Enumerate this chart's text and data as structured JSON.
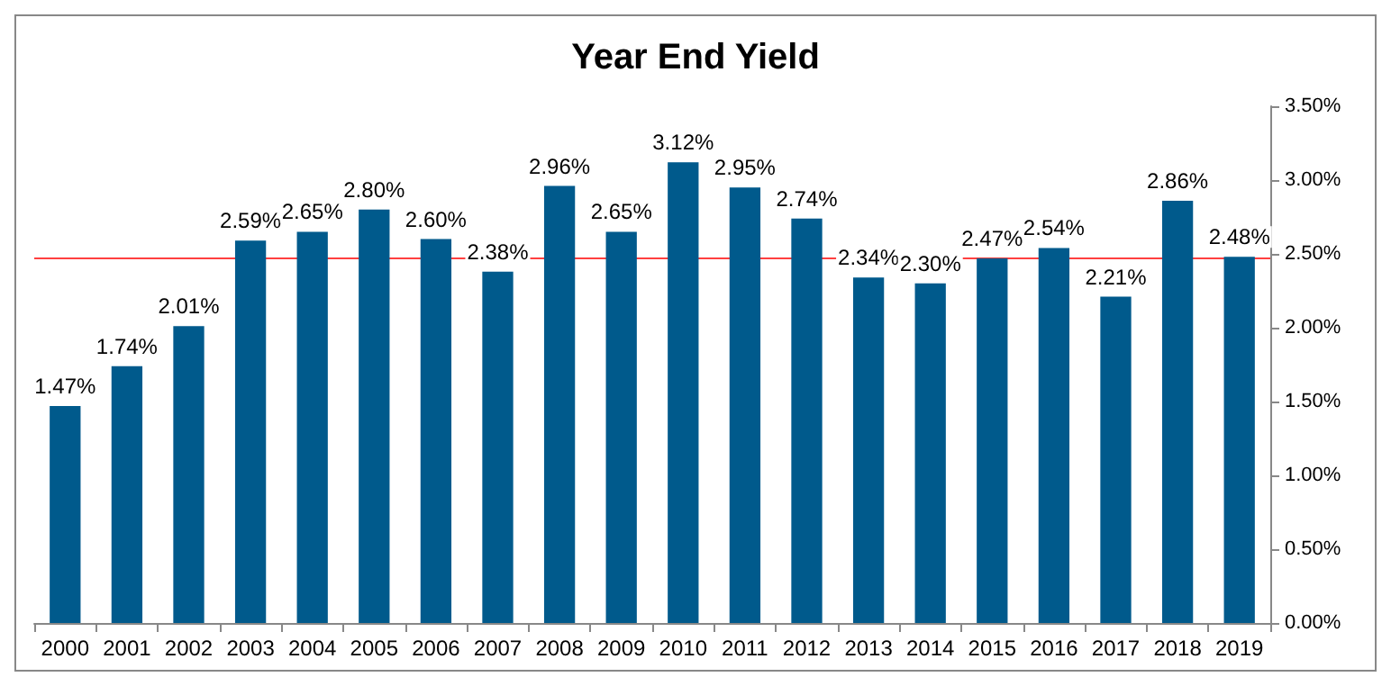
{
  "chart_data": {
    "type": "bar",
    "title": "Year End Yield",
    "categories": [
      "2000",
      "2001",
      "2002",
      "2003",
      "2004",
      "2005",
      "2006",
      "2007",
      "2008",
      "2009",
      "2010",
      "2011",
      "2012",
      "2013",
      "2014",
      "2015",
      "2016",
      "2017",
      "2018",
      "2019"
    ],
    "values": [
      1.47,
      1.74,
      2.01,
      2.59,
      2.65,
      2.8,
      2.6,
      2.38,
      2.96,
      2.65,
      3.12,
      2.95,
      2.74,
      2.34,
      2.3,
      2.47,
      2.54,
      2.21,
      2.86,
      2.48
    ],
    "value_labels": [
      "1.47%",
      "1.74%",
      "2.01%",
      "2.59%",
      "2.65%",
      "2.80%",
      "2.60%",
      "2.38%",
      "2.96%",
      "2.65%",
      "3.12%",
      "2.95%",
      "2.74%",
      "2.34%",
      "2.30%",
      "2.47%",
      "2.54%",
      "2.21%",
      "2.86%",
      "2.48%"
    ],
    "color": "#005a8c",
    "ylim": [
      0,
      3.5
    ],
    "yticks": [
      {
        "value": 0,
        "label": "0.00%"
      },
      {
        "value": 0.5,
        "label": "0.50%"
      },
      {
        "value": 1,
        "label": "1.00%"
      },
      {
        "value": 1.5,
        "label": "1.50%"
      },
      {
        "value": 2,
        "label": "2.00%"
      },
      {
        "value": 2.5,
        "label": "2.50%"
      },
      {
        "value": 3,
        "label": "3.00%"
      },
      {
        "value": 3.5,
        "label": "3.50%"
      }
    ],
    "ref_lines": [
      {
        "axis": "y",
        "value": 2.47,
        "color": "#ff4040"
      }
    ],
    "grid": false
  }
}
